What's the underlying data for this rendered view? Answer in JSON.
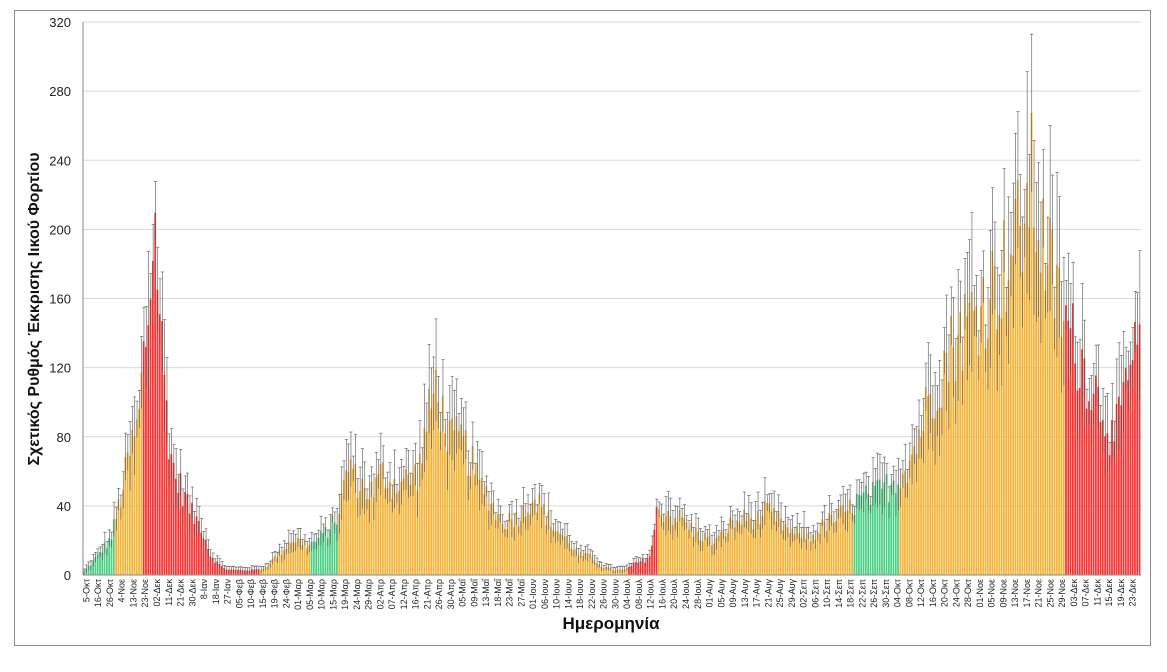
{
  "chart_data": {
    "type": "bar",
    "title": "",
    "xlabel": "Ημερομηνία",
    "ylabel": "Σχετικός Ρυθμός Έκκρισης Ιικού Φορτίου",
    "ylim": [
      0,
      320
    ],
    "yticks": [
      0,
      40,
      80,
      120,
      160,
      200,
      240,
      280,
      320
    ],
    "grid": true,
    "legend": "none",
    "bar_count": 460,
    "error_bars": true,
    "colors": {
      "red": "#ff3030",
      "orange": "#f5b335",
      "green": "#4ccf86",
      "error": "#555555",
      "grid": "#d9d9d9"
    },
    "segments": [
      {
        "from": 0,
        "to": 14,
        "color": "green"
      },
      {
        "from": 14,
        "to": 26,
        "color": "orange"
      },
      {
        "from": 26,
        "to": 77,
        "color": "red"
      },
      {
        "from": 77,
        "to": 99,
        "color": "orange"
      },
      {
        "from": 99,
        "to": 111,
        "color": "green"
      },
      {
        "from": 111,
        "to": 139,
        "color": "orange"
      },
      {
        "from": 139,
        "to": 237,
        "color": "orange"
      },
      {
        "from": 237,
        "to": 250,
        "color": "red"
      },
      {
        "from": 250,
        "to": 335,
        "color": "orange"
      },
      {
        "from": 335,
        "to": 355,
        "color": "green"
      },
      {
        "from": 355,
        "to": 427,
        "color": "orange"
      },
      {
        "from": 427,
        "to": 460,
        "color": "red"
      }
    ],
    "profile": [
      [
        0,
        2
      ],
      [
        6,
        8
      ],
      [
        12,
        15
      ],
      [
        18,
        22
      ],
      [
        24,
        45
      ],
      [
        30,
        72
      ],
      [
        36,
        90
      ],
      [
        40,
        135
      ],
      [
        44,
        165
      ],
      [
        46,
        215
      ],
      [
        48,
        200
      ],
      [
        52,
        135
      ],
      [
        56,
        88
      ],
      [
        60,
        60
      ],
      [
        66,
        50
      ],
      [
        72,
        36
      ],
      [
        78,
        30
      ],
      [
        84,
        12
      ],
      [
        90,
        6
      ],
      [
        96,
        3
      ],
      [
        104,
        3
      ],
      [
        112,
        3
      ],
      [
        120,
        4
      ],
      [
        126,
        10
      ],
      [
        132,
        15
      ],
      [
        138,
        22
      ],
      [
        144,
        20
      ],
      [
        150,
        18
      ],
      [
        156,
        22
      ],
      [
        162,
        27
      ],
      [
        168,
        35
      ],
      [
        172,
        50
      ],
      [
        176,
        70
      ],
      [
        180,
        58
      ],
      [
        186,
        52
      ],
      [
        192,
        50
      ],
      [
        198,
        62
      ],
      [
        204,
        55
      ],
      [
        210,
        56
      ],
      [
        216,
        58
      ],
      [
        222,
        62
      ],
      [
        226,
        85
      ],
      [
        230,
        100
      ],
      [
        234,
        118
      ],
      [
        238,
        95
      ],
      [
        244,
        80
      ],
      [
        250,
        82
      ],
      [
        256,
        70
      ],
      [
        262,
        55
      ],
      [
        268,
        48
      ],
      [
        274,
        36
      ],
      [
        280,
        32
      ],
      [
        286,
        35
      ],
      [
        292,
        38
      ],
      [
        298,
        48
      ],
      [
        304,
        40
      ],
      [
        310,
        30
      ],
      [
        316,
        25
      ],
      [
        322,
        20
      ],
      [
        328,
        12
      ],
      [
        332,
        12
      ],
      [
        338,
        10
      ],
      [
        344,
        5
      ],
      [
        352,
        3
      ],
      [
        358,
        3
      ],
      [
        362,
        5
      ],
      [
        366,
        7
      ],
      [
        372,
        9
      ],
      [
        376,
        13
      ],
      [
        380,
        38
      ],
      [
        386,
        38
      ],
      [
        392,
        35
      ],
      [
        398,
        33
      ],
      [
        404,
        26
      ],
      [
        410,
        24
      ],
      [
        416,
        20
      ],
      [
        422,
        22
      ],
      [
        428,
        30
      ],
      [
        434,
        32
      ],
      [
        440,
        35
      ],
      [
        446,
        33
      ],
      [
        452,
        38
      ],
      [
        458,
        35
      ],
      [
        464,
        30
      ],
      [
        470,
        24
      ],
      [
        476,
        26
      ],
      [
        482,
        22
      ],
      [
        488,
        28
      ],
      [
        494,
        32
      ],
      [
        500,
        35
      ],
      [
        506,
        38
      ],
      [
        512,
        44
      ],
      [
        518,
        46
      ],
      [
        524,
        48
      ],
      [
        530,
        52
      ],
      [
        536,
        55
      ],
      [
        542,
        62
      ],
      [
        548,
        70
      ],
      [
        552,
        80
      ],
      [
        556,
        92
      ],
      [
        560,
        105
      ],
      [
        566,
        118
      ],
      [
        572,
        130
      ],
      [
        578,
        142
      ],
      [
        584,
        150
      ],
      [
        590,
        158
      ],
      [
        596,
        165
      ],
      [
        602,
        172
      ],
      [
        608,
        180
      ],
      [
        612,
        190
      ],
      [
        616,
        198
      ],
      [
        620,
        205
      ],
      [
        624,
        215
      ],
      [
        628,
        238
      ],
      [
        632,
        215
      ],
      [
        636,
        200
      ],
      [
        642,
        180
      ],
      [
        648,
        160
      ],
      [
        654,
        145
      ],
      [
        660,
        132
      ],
      [
        666,
        120
      ],
      [
        672,
        108
      ],
      [
        678,
        98
      ],
      [
        682,
        80
      ],
      [
        686,
        90
      ],
      [
        690,
        110
      ],
      [
        696,
        128
      ],
      [
        700,
        140
      ]
    ],
    "x_tick_labels": [
      "5-Οκτ",
      "16-Οκτ",
      "26-Οκτ",
      "4-Νοε",
      "13-Νοε",
      "23-Νοε",
      "02-Δεκ",
      "11-Δεκ",
      "21-Δεκ",
      "30-Δεκ",
      "8-Ιαν",
      "18-Ιαν",
      "27-Ιαν",
      "05-Φεβ",
      "10-Φεβ",
      "15-Φεβ",
      "19-Φεβ",
      "24-Φεβ",
      "01-Μαρ",
      "05-Μαρ",
      "10-Μαρ",
      "15-Μαρ",
      "19-Μαρ",
      "24-Μαρ",
      "29-Μαρ",
      "02-Απρ",
      "07-Απρ",
      "12-Απρ",
      "16-Απρ",
      "21-Απρ",
      "26-Απρ",
      "30-Απρ",
      "05-Μαΐ",
      "09-Μαΐ",
      "13-Μαΐ",
      "18-Μαΐ",
      "23-Μαΐ",
      "27-Μαΐ",
      "01-Ιουν",
      "06-Ιουν",
      "10-Ιουν",
      "14-Ιουν",
      "18-Ιουν",
      "22-Ιουν",
      "26-Ιουν",
      "30-Ιουν",
      "04-Ιουλ",
      "08-Ιουλ",
      "12-Ιουλ",
      "16-Ιουλ",
      "20-Ιουλ",
      "24-Ιουλ",
      "28-Ιουλ",
      "01-Αυγ",
      "05-Αυγ",
      "09-Αυγ",
      "13-Αυγ",
      "17-Αυγ",
      "21-Αυγ",
      "25-Αυγ",
      "29-Αυγ",
      "02-Σεπ",
      "06-Σεπ",
      "10-Σεπ",
      "14-Σεπ",
      "18-Σεπ",
      "22-Σεπ",
      "26-Σεπ",
      "30-Σεπ",
      "04-Οκτ",
      "08-Οκτ",
      "12-Οκτ",
      "16-Οκτ",
      "20-Οκτ",
      "24-Οκτ",
      "28-Οκτ",
      "01-Νοε",
      "05-Νοε",
      "09-Νοε",
      "13-Νοε",
      "17-Νοε",
      "21-Νοε",
      "25-Νοε",
      "29-Νοε",
      "03-Δεκ",
      "07-Δεκ",
      "11-Δεκ",
      "15-Δεκ",
      "19-Δεκ",
      "23-Δεκ"
    ]
  }
}
